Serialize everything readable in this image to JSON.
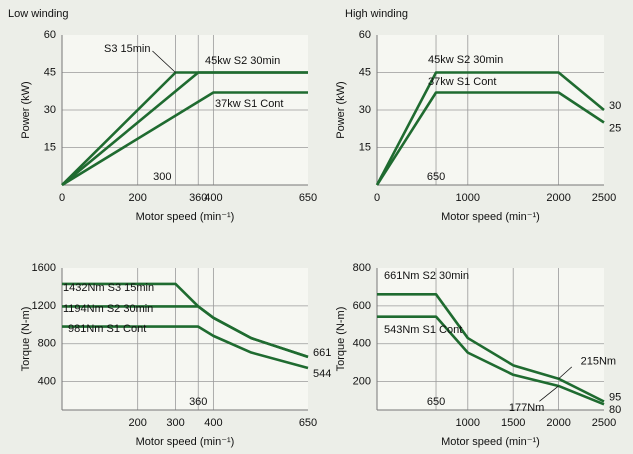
{
  "chart_data": [
    {
      "type": "line",
      "title": "Low winding",
      "ylabel": "Power (kW)",
      "xlabel": "Motor speed (min⁻¹)",
      "xlim": [
        0,
        650
      ],
      "xticks": [
        0,
        200,
        360,
        400,
        650
      ],
      "ylim": [
        0,
        60
      ],
      "yticks": [
        15,
        30,
        45,
        60
      ],
      "grid": true,
      "annotations": [
        {
          "text": "300",
          "x": 300
        }
      ],
      "series": [
        {
          "name": "S3 15min",
          "color": "#1f6b30",
          "x": [
            0,
            300,
            650
          ],
          "values": [
            0,
            45,
            45
          ]
        },
        {
          "name": "45kw S2 30min",
          "color": "#1f6b30",
          "x": [
            0,
            360,
            650
          ],
          "values": [
            0,
            45,
            45
          ]
        },
        {
          "name": "37kw S1 Cont",
          "color": "#1f6b30",
          "x": [
            0,
            400,
            650
          ],
          "values": [
            0,
            37,
            37
          ]
        }
      ]
    },
    {
      "type": "line",
      "title": "High winding",
      "ylabel": "Power (kW)",
      "xlabel": "Motor speed (min⁻¹)",
      "xlim": [
        0,
        2500
      ],
      "xticks": [
        0,
        1000,
        2000,
        2500
      ],
      "ylim": [
        0,
        60
      ],
      "yticks": [
        15,
        30,
        45,
        60
      ],
      "grid": true,
      "annotations": [
        {
          "text": "650",
          "x": 650
        }
      ],
      "series": [
        {
          "name": "45kw S2 30min",
          "color": "#1f6b30",
          "x": [
            0,
            650,
            2000,
            2500
          ],
          "values": [
            0,
            45,
            45,
            30
          ],
          "value_labels": [
            null,
            null,
            null,
            "30"
          ]
        },
        {
          "name": "37kw S1 Cont",
          "color": "#1f6b30",
          "x": [
            0,
            650,
            2000,
            2500
          ],
          "values": [
            0,
            37,
            37,
            25
          ],
          "value_labels": [
            null,
            null,
            null,
            "25"
          ]
        }
      ]
    },
    {
      "type": "line",
      "ylabel": "Torque (N-m)",
      "xlabel": "Motor speed (min⁻¹)",
      "xlim": [
        0,
        650
      ],
      "xticks": [
        200,
        300,
        400,
        650
      ],
      "ylim": [
        100,
        1600
      ],
      "yticks": [
        400,
        800,
        1200,
        1600
      ],
      "grid": true,
      "annotations": [
        {
          "text": "360",
          "x": 360
        }
      ],
      "series": [
        {
          "name": "1432Nm S3 15min",
          "color": "#1f6b30",
          "x": [
            0,
            300,
            360,
            400,
            500,
            650
          ],
          "values": [
            1432,
            1432,
            1194,
            1074,
            859,
            661
          ],
          "value_labels": [
            null,
            null,
            null,
            null,
            null,
            "661"
          ]
        },
        {
          "name": "1194Nm S2 30min",
          "color": "#1f6b30",
          "x": [
            0,
            360,
            400,
            500,
            650
          ],
          "values": [
            1194,
            1194,
            1074,
            859,
            661
          ]
        },
        {
          "name": "981Nm S1 Cont",
          "color": "#1f6b30",
          "x": [
            0,
            360,
            400,
            500,
            650
          ],
          "values": [
            981,
            981,
            883,
            707,
            544
          ],
          "value_labels": [
            null,
            null,
            null,
            null,
            "544"
          ]
        }
      ]
    },
    {
      "type": "line",
      "ylabel": "Torque (N-m)",
      "xlabel": "Motor speed (min⁻¹)",
      "xlim": [
        0,
        2500
      ],
      "xticks": [
        1000,
        1500,
        2000,
        2500
      ],
      "ylim": [
        50,
        800
      ],
      "yticks": [
        200,
        400,
        600,
        800
      ],
      "grid": true,
      "annotations": [
        {
          "text": "650",
          "x": 650
        }
      ],
      "series": [
        {
          "name": "661Nm S2 30min",
          "color": "#1f6b30",
          "x": [
            0,
            650,
            1000,
            1500,
            2000,
            2500
          ],
          "values": [
            661,
            661,
            430,
            286,
            215,
            95
          ],
          "value_labels": [
            null,
            null,
            null,
            null,
            "215Nm",
            "95"
          ]
        },
        {
          "name": "543Nm S1 Cont",
          "color": "#1f6b30",
          "x": [
            0,
            650,
            1000,
            1500,
            2000,
            2500
          ],
          "values": [
            543,
            543,
            353,
            236,
            177,
            80
          ],
          "value_labels": [
            null,
            null,
            null,
            null,
            "177Nm",
            "80"
          ]
        }
      ]
    }
  ]
}
